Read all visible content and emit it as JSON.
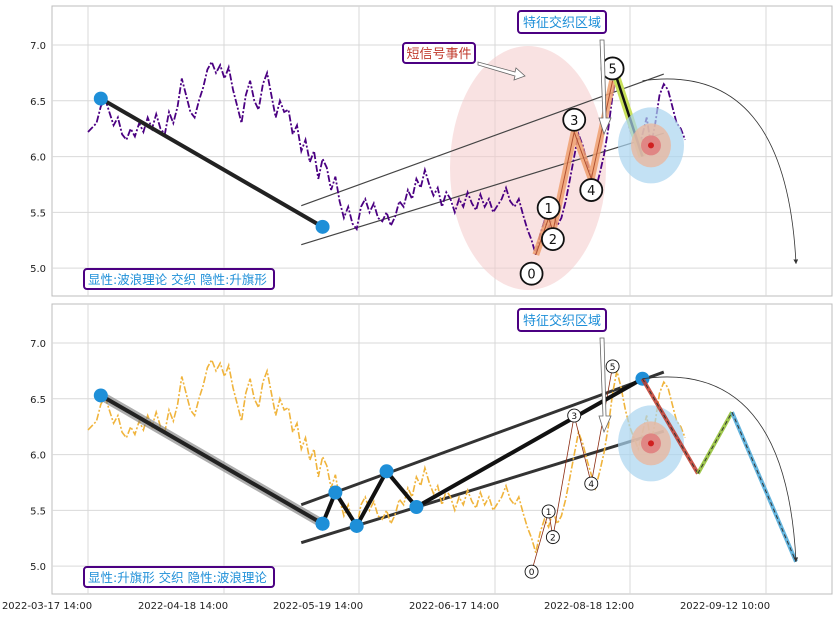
{
  "chart_data": {
    "type": "line",
    "x_tick_labels": [
      "2022-03-17 14:00",
      "2022-04-18 14:00",
      "2022-05-19 14:00",
      "2022-06-17 14:00",
      "2022-08-18 12:00",
      "2022-09-12 10:00"
    ],
    "y_ticks": [
      5.0,
      5.5,
      6.0,
      6.5,
      7.0
    ],
    "ylim": [
      4.75,
      7.35
    ],
    "xlim": [
      0,
      172
    ],
    "grid": true,
    "colors": {
      "top_price": "#4b0082",
      "bottom_price": "#f0b43c",
      "pivot": "#1e8fd8",
      "label_border": "#4b0082",
      "label_text": "#1e8fd8",
      "annotation_text": "#c0392b",
      "event_ellipse": "#f4caca",
      "forecast_red": "#c0392b",
      "forecast_green": "#8fbf2f",
      "forecast_blue": "#4aa8d8"
    },
    "price_series": [
      [
        0,
        6.22
      ],
      [
        2,
        6.3
      ],
      [
        3,
        6.45
      ],
      [
        4,
        6.52
      ],
      [
        5,
        6.4
      ],
      [
        6,
        6.28
      ],
      [
        7,
        6.35
      ],
      [
        8,
        6.2
      ],
      [
        9,
        6.15
      ],
      [
        10,
        6.25
      ],
      [
        11,
        6.18
      ],
      [
        12,
        6.3
      ],
      [
        13,
        6.22
      ],
      [
        14,
        6.35
      ],
      [
        15,
        6.25
      ],
      [
        16,
        6.38
      ],
      [
        17,
        6.25
      ],
      [
        18,
        6.2
      ],
      [
        19,
        6.4
      ],
      [
        20,
        6.3
      ],
      [
        21,
        6.45
      ],
      [
        22,
        6.7
      ],
      [
        23,
        6.55
      ],
      [
        24,
        6.4
      ],
      [
        25,
        6.35
      ],
      [
        26,
        6.5
      ],
      [
        27,
        6.62
      ],
      [
        28,
        6.78
      ],
      [
        29,
        6.85
      ],
      [
        30,
        6.75
      ],
      [
        31,
        6.82
      ],
      [
        32,
        6.7
      ],
      [
        33,
        6.8
      ],
      [
        34,
        6.6
      ],
      [
        35,
        6.45
      ],
      [
        36,
        6.3
      ],
      [
        37,
        6.55
      ],
      [
        38,
        6.68
      ],
      [
        39,
        6.5
      ],
      [
        40,
        6.42
      ],
      [
        41,
        6.65
      ],
      [
        42,
        6.75
      ],
      [
        43,
        6.55
      ],
      [
        44,
        6.35
      ],
      [
        45,
        6.5
      ],
      [
        46,
        6.4
      ],
      [
        47,
        6.42
      ],
      [
        48,
        6.2
      ],
      [
        49,
        6.28
      ],
      [
        50,
        6.05
      ],
      [
        51,
        6.15
      ],
      [
        52,
        5.95
      ],
      [
        53,
        6.05
      ],
      [
        54,
        5.8
      ],
      [
        55,
        5.98
      ],
      [
        56,
        5.9
      ],
      [
        57,
        5.7
      ],
      [
        58,
        5.82
      ],
      [
        59,
        5.6
      ],
      [
        60,
        5.45
      ],
      [
        61,
        5.55
      ],
      [
        62,
        5.4
      ],
      [
        63,
        5.35
      ],
      [
        64,
        5.55
      ],
      [
        65,
        5.62
      ],
      [
        66,
        5.5
      ],
      [
        67,
        5.58
      ],
      [
        68,
        5.45
      ],
      [
        69,
        5.42
      ],
      [
        70,
        5.5
      ],
      [
        71,
        5.38
      ],
      [
        72,
        5.46
      ],
      [
        73,
        5.6
      ],
      [
        74,
        5.55
      ],
      [
        75,
        5.7
      ],
      [
        76,
        5.62
      ],
      [
        77,
        5.8
      ],
      [
        78,
        5.72
      ],
      [
        79,
        5.88
      ],
      [
        80,
        5.75
      ],
      [
        81,
        5.65
      ],
      [
        82,
        5.72
      ],
      [
        83,
        5.55
      ],
      [
        84,
        5.68
      ],
      [
        85,
        5.62
      ],
      [
        86,
        5.5
      ],
      [
        87,
        5.62
      ],
      [
        88,
        5.55
      ],
      [
        89,
        5.68
      ],
      [
        90,
        5.58
      ],
      [
        91,
        5.52
      ],
      [
        92,
        5.66
      ],
      [
        93,
        5.55
      ],
      [
        94,
        5.62
      ],
      [
        95,
        5.5
      ],
      [
        96,
        5.56
      ],
      [
        97,
        5.62
      ],
      [
        98,
        5.72
      ],
      [
        99,
        5.6
      ],
      [
        100,
        5.55
      ],
      [
        101,
        5.62
      ],
      [
        102,
        5.48
      ],
      [
        103,
        5.35
      ],
      [
        104,
        5.25
      ],
      [
        105,
        5.12
      ],
      [
        106,
        5.3
      ],
      [
        107,
        5.42
      ],
      [
        108,
        5.35
      ],
      [
        109,
        5.5
      ],
      [
        110,
        5.38
      ],
      [
        111,
        5.45
      ],
      [
        112,
        5.6
      ],
      [
        113,
        5.8
      ],
      [
        114,
        6.0
      ],
      [
        115,
        6.2
      ],
      [
        116,
        6.1
      ],
      [
        117,
        5.95
      ],
      [
        118,
        5.82
      ],
      [
        119,
        5.7
      ],
      [
        120,
        5.85
      ],
      [
        121,
        6.02
      ],
      [
        122,
        6.25
      ],
      [
        123,
        6.55
      ],
      [
        124,
        6.75
      ],
      [
        125,
        6.6
      ],
      [
        126,
        6.4
      ],
      [
        127,
        6.25
      ],
      [
        128,
        6.15
      ],
      [
        129,
        6.05
      ],
      [
        130,
        6.2
      ],
      [
        131,
        6.35
      ],
      [
        132,
        6.1
      ],
      [
        133,
        6.3
      ],
      [
        134,
        6.55
      ],
      [
        135,
        6.65
      ],
      [
        136,
        6.6
      ],
      [
        137,
        6.45
      ],
      [
        138,
        6.3
      ],
      [
        139,
        6.25
      ],
      [
        140,
        6.15
      ]
    ],
    "panels": [
      {
        "pattern_label": "显性:波浪理论 交织 隐性:升旗形",
        "pattern_label_pos": "bottom-left",
        "zone_label": "特征交织区域",
        "event_label": "短信号事件",
        "main_pivots": [
          [
            3,
            6.52
          ],
          [
            55,
            5.37
          ]
        ],
        "wave_points": [
          {
            "label": "0",
            "x": 104,
            "y": 4.95,
            "px": 105,
            "py": 5.12
          },
          {
            "label": "1",
            "x": 108,
            "y": 5.54,
            "px": 108,
            "py": 5.45
          },
          {
            "label": "2",
            "x": 109,
            "y": 5.26,
            "px": 109,
            "py": 5.33
          },
          {
            "label": "3",
            "x": 114,
            "y": 6.33,
            "px": 114,
            "py": 6.22
          },
          {
            "label": "4",
            "x": 118,
            "y": 5.7,
            "px": 118,
            "py": 5.8
          },
          {
            "label": "5",
            "x": 123,
            "y": 6.79,
            "px": 123,
            "py": 6.68
          }
        ],
        "green_segment": [
          [
            124,
            6.7
          ],
          [
            130,
            6.0
          ]
        ],
        "channel_upper": [
          [
            50,
            5.56
          ],
          [
            135,
            6.74
          ]
        ],
        "channel_lower": [
          [
            50,
            5.21
          ],
          [
            135,
            6.21
          ]
        ],
        "target": [
          132,
          6.1
        ],
        "forecast_arc_end": [
          166,
          5.04
        ]
      },
      {
        "pattern_label": "显性:升旗形 交织 隐性:波浪理论",
        "pattern_label_pos": "bottom-left",
        "zone_label": "特征交织区域",
        "main_pivots": [
          [
            3,
            6.53
          ],
          [
            55,
            5.38
          ]
        ],
        "flag_pivots": [
          [
            55,
            5.38
          ],
          [
            58,
            5.66
          ],
          [
            63,
            5.36
          ],
          [
            70,
            5.85
          ],
          [
            77,
            5.53
          ],
          [
            130,
            6.68
          ]
        ],
        "wave_points": [
          {
            "label": "0",
            "x": 104,
            "y": 4.95
          },
          {
            "label": "1",
            "x": 108,
            "y": 5.49
          },
          {
            "label": "2",
            "x": 109,
            "y": 5.26
          },
          {
            "label": "3",
            "x": 114,
            "y": 6.35
          },
          {
            "label": "4",
            "x": 118,
            "y": 5.74
          },
          {
            "label": "5",
            "x": 123,
            "y": 6.79
          }
        ],
        "channel_upper": [
          [
            50,
            5.55
          ],
          [
            135,
            6.74
          ]
        ],
        "channel_lower": [
          [
            50,
            5.21
          ],
          [
            135,
            6.21
          ]
        ],
        "target": [
          132,
          6.1
        ],
        "forecast_path": [
          [
            130,
            6.68
          ],
          [
            143,
            5.83
          ],
          [
            151,
            6.38
          ],
          [
            166,
            5.04
          ]
        ],
        "forecast_arc_end": [
          166,
          5.04
        ]
      }
    ]
  }
}
